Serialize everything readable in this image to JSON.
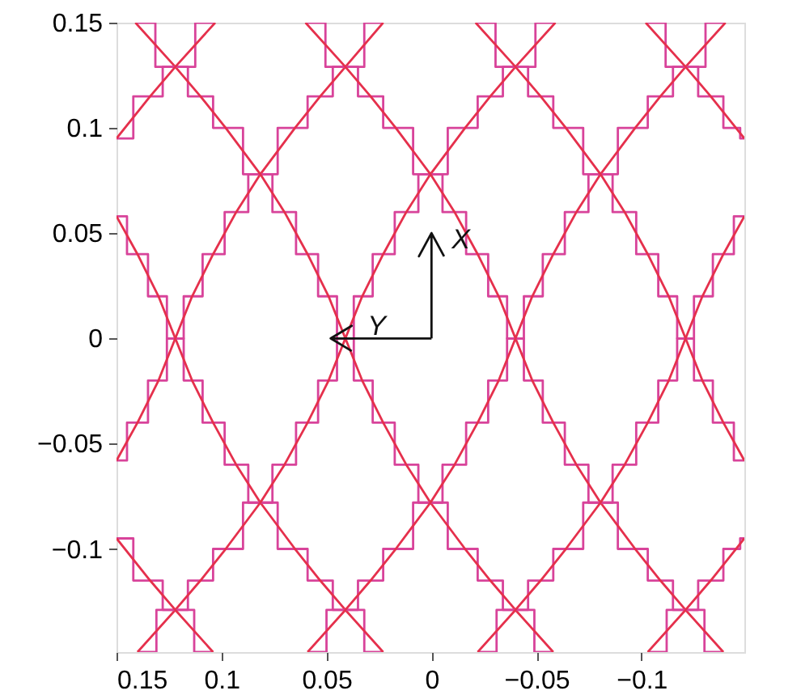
{
  "chart_data": {
    "type": "line",
    "xlim": [
      0.15,
      -0.149
    ],
    "ylim": [
      -0.149,
      0.15
    ],
    "xticks": [
      0.15,
      0.1,
      0.05,
      0,
      {
        "value": -0.05,
        "label": "−0.05"
      },
      {
        "value": -0.1,
        "label": "−0.1"
      }
    ],
    "yticks": [
      {
        "value": -0.1,
        "label": "−0.1"
      },
      {
        "value": -0.05,
        "label": "−0.05"
      },
      0,
      0.05,
      0.1,
      0.15
    ],
    "grid": false,
    "line_style": "solid",
    "marker": "none",
    "series": [
      {
        "type": "step",
        "color": "#d8439a",
        "x": [
          0.15,
          0.14,
          0.13,
          0.122,
          0.114,
          0.104,
          0.093,
          0.0815,
          0.065,
          0.053,
          0.041,
          0.023
        ],
        "values": [
          0.058,
          0.04,
          0.02,
          0,
          -0.02,
          -0.04,
          -0.06,
          -0.078,
          -0.1,
          -0.115,
          -0.129,
          -0.149
        ]
      },
      {
        "type": "line",
        "color": "#e5304c",
        "x": [
          0.15,
          0.14,
          0.13,
          0.122,
          0.114,
          0.104,
          0.093,
          0.0815,
          0.065,
          0.053,
          0.041,
          0.023
        ],
        "values": [
          0.058,
          0.04,
          0.02,
          0,
          -0.02,
          -0.04,
          -0.06,
          -0.078,
          -0.1,
          -0.115,
          -0.129,
          -0.149
        ]
      },
      {
        "type": "step",
        "color": "#d8439a",
        "x": [
          0.023,
          0.041,
          0.053,
          0.065,
          0.0815,
          0.093,
          0.104,
          0.114,
          0.122,
          0.13,
          0.14,
          0.15
        ],
        "values": [
          0.15,
          0.129,
          0.115,
          0.1,
          0.078,
          0.06,
          0.04,
          0.02,
          0,
          -0.02,
          -0.04,
          -0.058
        ]
      },
      {
        "type": "line",
        "color": "#e5304c",
        "x": [
          0.023,
          0.041,
          0.053,
          0.065,
          0.0815,
          0.093,
          0.104,
          0.114,
          0.122,
          0.13,
          0.14,
          0.15
        ],
        "values": [
          0.15,
          0.129,
          0.115,
          0.1,
          0.078,
          0.06,
          0.04,
          0.02,
          0,
          -0.02,
          -0.04,
          -0.058
        ]
      },
      {
        "type": "step",
        "color": "#d8439a",
        "x": [
          0.141,
          0.122,
          0.11,
          0.098,
          0.0815,
          0.07,
          0.059,
          0.049,
          0.041,
          0.033,
          0.023,
          0.012,
          0.0005,
          -0.016,
          -0.028,
          -0.04,
          -0.058
        ],
        "values": [
          0.15,
          0.129,
          0.115,
          0.1,
          0.078,
          0.06,
          0.04,
          0.02,
          0,
          -0.02,
          -0.04,
          -0.06,
          -0.078,
          -0.1,
          -0.115,
          -0.129,
          -0.149
        ]
      },
      {
        "type": "line",
        "color": "#e5304c",
        "x": [
          0.141,
          0.122,
          0.11,
          0.098,
          0.0815,
          0.07,
          0.059,
          0.049,
          0.041,
          0.033,
          0.023,
          0.012,
          0.0005,
          -0.016,
          -0.028,
          -0.04,
          -0.058
        ],
        "values": [
          0.15,
          0.129,
          0.115,
          0.1,
          0.078,
          0.06,
          0.04,
          0.02,
          0,
          -0.02,
          -0.04,
          -0.06,
          -0.078,
          -0.1,
          -0.115,
          -0.129,
          -0.149
        ]
      },
      {
        "type": "step",
        "color": "#d8439a",
        "x": [
          -0.059,
          -0.04,
          -0.028,
          -0.016,
          0.0005,
          0.012,
          0.023,
          0.033,
          0.041,
          0.049,
          0.059,
          0.07,
          0.0815,
          0.098,
          0.11,
          0.122,
          0.14
        ],
        "values": [
          0.15,
          0.129,
          0.115,
          0.1,
          0.078,
          0.06,
          0.04,
          0.02,
          0,
          -0.02,
          -0.04,
          -0.06,
          -0.078,
          -0.1,
          -0.115,
          -0.129,
          -0.149
        ]
      },
      {
        "type": "line",
        "color": "#e5304c",
        "x": [
          -0.059,
          -0.04,
          -0.028,
          -0.016,
          0.0005,
          0.012,
          0.023,
          0.033,
          0.041,
          0.049,
          0.059,
          0.07,
          0.0815,
          0.098,
          0.11,
          0.122,
          0.14
        ],
        "values": [
          0.15,
          0.129,
          0.115,
          0.1,
          0.078,
          0.06,
          0.04,
          0.02,
          0,
          -0.02,
          -0.04,
          -0.06,
          -0.078,
          -0.1,
          -0.115,
          -0.129,
          -0.149
        ]
      },
      {
        "type": "step",
        "color": "#d8439a",
        "x": [
          0.06,
          0.041,
          0.029,
          0.017,
          0.0005,
          -0.011,
          -0.022,
          -0.032,
          -0.04,
          -0.048,
          -0.058,
          -0.069,
          -0.0805,
          -0.097,
          -0.109,
          -0.121,
          -0.139
        ],
        "values": [
          0.15,
          0.129,
          0.115,
          0.1,
          0.078,
          0.06,
          0.04,
          0.02,
          0,
          -0.02,
          -0.04,
          -0.06,
          -0.078,
          -0.1,
          -0.115,
          -0.129,
          -0.149
        ]
      },
      {
        "type": "line",
        "color": "#e5304c",
        "x": [
          0.06,
          0.041,
          0.029,
          0.017,
          0.0005,
          -0.011,
          -0.022,
          -0.032,
          -0.04,
          -0.048,
          -0.058,
          -0.069,
          -0.0805,
          -0.097,
          -0.109,
          -0.121,
          -0.139
        ],
        "values": [
          0.15,
          0.129,
          0.115,
          0.1,
          0.078,
          0.06,
          0.04,
          0.02,
          0,
          -0.02,
          -0.04,
          -0.06,
          -0.078,
          -0.1,
          -0.115,
          -0.129,
          -0.149
        ]
      },
      {
        "type": "step",
        "color": "#d8439a",
        "x": [
          -0.14,
          -0.121,
          -0.109,
          -0.097,
          -0.0805,
          -0.069,
          -0.058,
          -0.048,
          -0.04,
          -0.032,
          -0.022,
          -0.011,
          0.0005,
          0.017,
          0.029,
          0.041,
          0.059
        ],
        "values": [
          0.15,
          0.129,
          0.115,
          0.1,
          0.078,
          0.06,
          0.04,
          0.02,
          0,
          -0.02,
          -0.04,
          -0.06,
          -0.078,
          -0.1,
          -0.115,
          -0.129,
          -0.149
        ]
      },
      {
        "type": "line",
        "color": "#e5304c",
        "x": [
          -0.14,
          -0.121,
          -0.109,
          -0.097,
          -0.0805,
          -0.069,
          -0.058,
          -0.048,
          -0.04,
          -0.032,
          -0.022,
          -0.011,
          0.0005,
          0.017,
          0.029,
          0.041,
          0.059
        ],
        "values": [
          0.15,
          0.129,
          0.115,
          0.1,
          0.078,
          0.06,
          0.04,
          0.02,
          0,
          -0.02,
          -0.04,
          -0.06,
          -0.078,
          -0.1,
          -0.115,
          -0.129,
          -0.149
        ]
      },
      {
        "type": "step",
        "color": "#d8439a",
        "x": [
          -0.021,
          -0.04,
          -0.052,
          -0.064,
          -0.0805,
          -0.092,
          -0.103,
          -0.113,
          -0.121,
          -0.129,
          -0.139,
          -0.149
        ],
        "values": [
          0.15,
          0.129,
          0.115,
          0.1,
          0.078,
          0.06,
          0.04,
          0.02,
          0,
          -0.02,
          -0.04,
          -0.058
        ]
      },
      {
        "type": "line",
        "color": "#e5304c",
        "x": [
          -0.021,
          -0.04,
          -0.052,
          -0.064,
          -0.0805,
          -0.092,
          -0.103,
          -0.113,
          -0.121,
          -0.129,
          -0.139,
          -0.149
        ],
        "values": [
          0.15,
          0.129,
          0.115,
          0.1,
          0.078,
          0.06,
          0.04,
          0.02,
          0,
          -0.02,
          -0.04,
          -0.058
        ]
      },
      {
        "type": "step",
        "color": "#d8439a",
        "x": [
          -0.149,
          -0.139,
          -0.129,
          -0.121,
          -0.113,
          -0.103,
          -0.092,
          -0.0805,
          -0.064,
          -0.052,
          -0.04,
          -0.022
        ],
        "values": [
          0.058,
          0.04,
          0.02,
          0,
          -0.02,
          -0.04,
          -0.06,
          -0.078,
          -0.1,
          -0.115,
          -0.129,
          -0.149
        ]
      },
      {
        "type": "line",
        "color": "#e5304c",
        "x": [
          -0.149,
          -0.139,
          -0.129,
          -0.121,
          -0.113,
          -0.103,
          -0.092,
          -0.0805,
          -0.064,
          -0.052,
          -0.04,
          -0.022
        ],
        "values": [
          0.058,
          0.04,
          0.02,
          0,
          -0.02,
          -0.04,
          -0.06,
          -0.078,
          -0.1,
          -0.115,
          -0.129,
          -0.149
        ]
      },
      {
        "type": "step",
        "color": "#d8439a",
        "x": [
          0.15,
          0.134,
          0.122,
          0.104
        ],
        "values": [
          -0.095,
          -0.115,
          -0.129,
          -0.149
        ]
      },
      {
        "type": "line",
        "color": "#e5304c",
        "x": [
          0.15,
          0.134,
          0.122,
          0.104
        ],
        "values": [
          -0.095,
          -0.115,
          -0.129,
          -0.149
        ]
      },
      {
        "type": "step",
        "color": "#d8439a",
        "x": [
          0.103,
          0.122,
          0.134,
          0.15
        ],
        "values": [
          0.15,
          0.129,
          0.115,
          0.095
        ]
      },
      {
        "type": "line",
        "color": "#e5304c",
        "x": [
          0.103,
          0.122,
          0.134,
          0.15
        ],
        "values": [
          0.15,
          0.129,
          0.115,
          0.095
        ]
      },
      {
        "type": "step",
        "color": "#d8439a",
        "x": [
          -0.102,
          -0.121,
          -0.133,
          -0.145,
          -0.149
        ],
        "values": [
          0.15,
          0.129,
          0.115,
          0.1,
          0.095
        ]
      },
      {
        "type": "line",
        "color": "#e5304c",
        "x": [
          -0.102,
          -0.121,
          -0.133,
          -0.145,
          -0.149
        ],
        "values": [
          0.15,
          0.129,
          0.115,
          0.1,
          0.095
        ]
      },
      {
        "type": "step",
        "color": "#d8439a",
        "x": [
          -0.149,
          -0.145,
          -0.133,
          -0.121,
          -0.103
        ],
        "values": [
          -0.095,
          -0.1,
          -0.115,
          -0.129,
          -0.149
        ]
      },
      {
        "type": "line",
        "color": "#e5304c",
        "x": [
          -0.149,
          -0.145,
          -0.133,
          -0.121,
          -0.103
        ],
        "values": [
          -0.095,
          -0.1,
          -0.115,
          -0.129,
          -0.149
        ]
      },
      {
        "name": "X",
        "color": "#111111",
        "x": [
          0,
          0,
          0.006,
          0,
          -0.006
        ],
        "values": [
          0,
          0.05,
          0.039,
          0.05,
          0.039
        ]
      },
      {
        "name": "Y",
        "color": "#111111",
        "x": [
          0,
          0.048,
          0.038,
          0.048,
          0.038
        ],
        "values": [
          0,
          0,
          0.006,
          0,
          -0.006
        ]
      }
    ]
  }
}
